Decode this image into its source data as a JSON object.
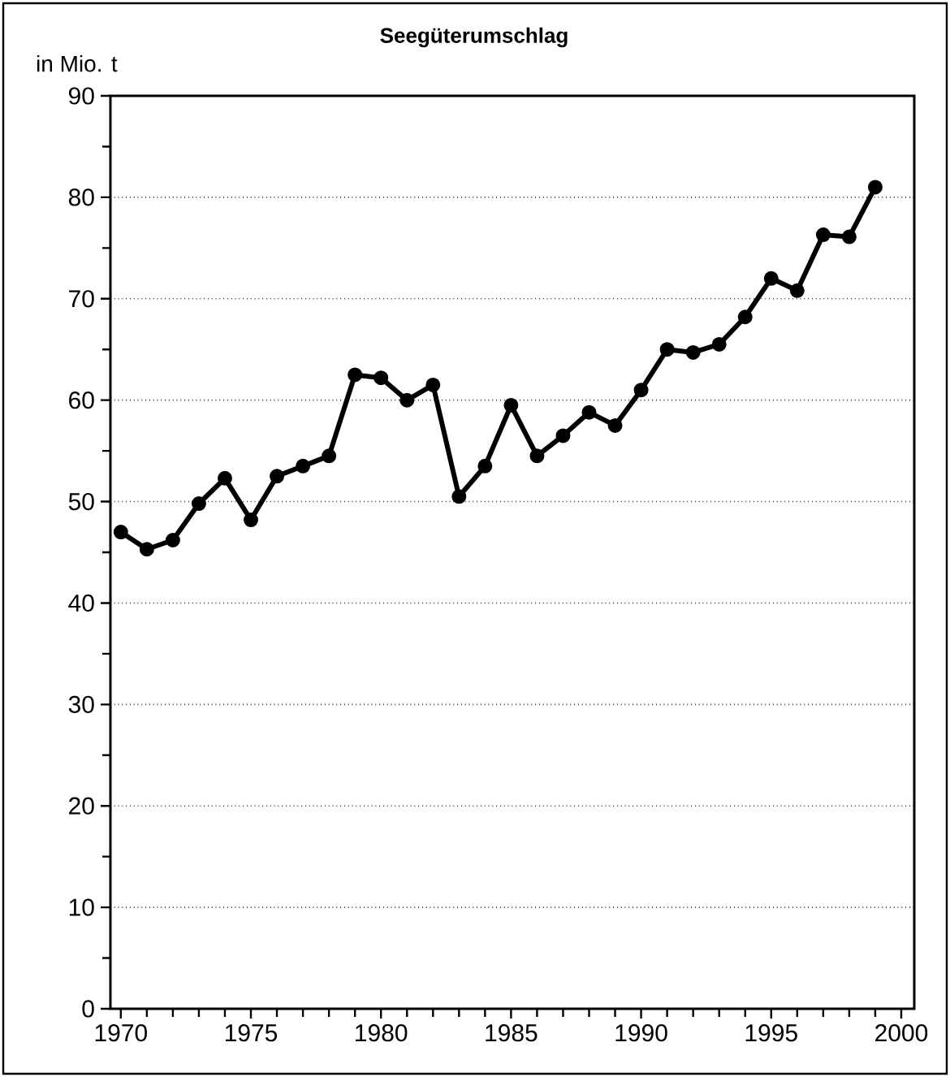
{
  "chart_data": {
    "type": "line",
    "title": "Seegüterumschlag",
    "ylabel": "in Mio. t",
    "x": [
      1970,
      1971,
      1972,
      1973,
      1974,
      1975,
      1976,
      1977,
      1978,
      1979,
      1980,
      1981,
      1982,
      1983,
      1984,
      1985,
      1986,
      1987,
      1988,
      1989,
      1990,
      1991,
      1992,
      1993,
      1994,
      1995,
      1996,
      1997,
      1998,
      1999
    ],
    "series": [
      {
        "color": "#000000",
        "values": [
          47,
          45.3,
          46.2,
          49.8,
          52.3,
          48.2,
          52.5,
          53.5,
          54.5,
          62.5,
          62.2,
          60,
          61.5,
          50.5,
          53.5,
          59.5,
          54.5,
          56.5,
          58.8,
          57.5,
          61,
          65,
          64.7,
          65.5,
          68.2,
          72,
          70.8,
          76.3,
          76.1,
          81
        ]
      }
    ],
    "xlim": [
      1969.6,
      2000.5
    ],
    "xticks": [
      1970,
      {
        "value": 1971,
        "label": null
      },
      {
        "value": 1972,
        "label": null
      },
      {
        "value": 1973,
        "label": null
      },
      {
        "value": 1974,
        "label": null
      },
      1975,
      {
        "value": 1976,
        "label": null
      },
      {
        "value": 1977,
        "label": null
      },
      {
        "value": 1978,
        "label": null
      },
      {
        "value": 1979,
        "label": null
      },
      1980,
      {
        "value": 1981,
        "label": null
      },
      {
        "value": 1982,
        "label": null
      },
      {
        "value": 1983,
        "label": null
      },
      {
        "value": 1984,
        "label": null
      },
      1985,
      {
        "value": 1986,
        "label": null
      },
      {
        "value": 1987,
        "label": null
      },
      {
        "value": 1988,
        "label": null
      },
      {
        "value": 1989,
        "label": null
      },
      1990,
      {
        "value": 1991,
        "label": null
      },
      {
        "value": 1992,
        "label": null
      },
      {
        "value": 1993,
        "label": null
      },
      {
        "value": 1994,
        "label": null
      },
      1995,
      {
        "value": 1996,
        "label": null
      },
      {
        "value": 1997,
        "label": null
      },
      {
        "value": 1998,
        "label": null
      },
      {
        "value": 1999,
        "label": null
      },
      2000
    ],
    "ylim": [
      0,
      90
    ],
    "yticks": [
      0,
      {
        "value": 5,
        "label": null
      },
      10,
      {
        "value": 15,
        "label": null
      },
      20,
      {
        "value": 25,
        "label": null
      },
      30,
      {
        "value": 35,
        "label": null
      },
      40,
      {
        "value": 45,
        "label": null
      },
      50,
      {
        "value": 55,
        "label": null
      },
      60,
      {
        "value": 65,
        "label": null
      },
      70,
      {
        "value": 75,
        "label": null
      },
      80,
      {
        "value": 85,
        "label": null
      },
      90
    ],
    "grid": "y",
    "marker": "circle",
    "line_style": "solid"
  }
}
